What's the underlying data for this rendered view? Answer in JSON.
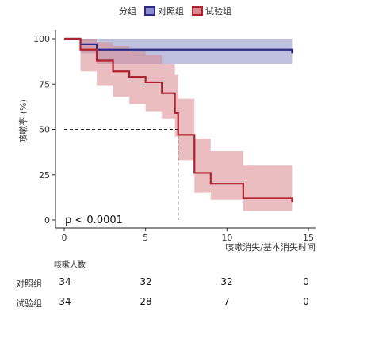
{
  "legend": {
    "title": "分组",
    "items": [
      {
        "name": "对照组",
        "color": "#2b2a84"
      },
      {
        "name": "试验组",
        "color": "#b0212d"
      }
    ]
  },
  "chart_data": {
    "type": "line",
    "ylabel": "咳嗽率 (%)",
    "xlabel": "咳嗽消失/基本消失时间",
    "xlim": [
      0,
      15
    ],
    "ylim": [
      0,
      100
    ],
    "xticks": [
      "0",
      "5",
      "10",
      "15"
    ],
    "yticks": [
      "0",
      "25",
      "50",
      "75",
      "100"
    ],
    "annotation": "p < 0.0001",
    "median_line": {
      "x": 7,
      "y": 50
    },
    "series": [
      {
        "name": "对照组",
        "color": "#2b2a84",
        "band_color": "#8c8cc8",
        "steps": [
          [
            0,
            100
          ],
          [
            1,
            100
          ],
          [
            1,
            97
          ],
          [
            2,
            97
          ],
          [
            2,
            94
          ],
          [
            14,
            94
          ],
          [
            14,
            92
          ]
        ],
        "band": [
          [
            0,
            100,
            100
          ],
          [
            1,
            100,
            92
          ],
          [
            2,
            100,
            86
          ],
          [
            14,
            100,
            86
          ]
        ]
      },
      {
        "name": "试验组",
        "color": "#b0212d",
        "band_color": "#d9868e",
        "steps": [
          [
            0,
            100
          ],
          [
            1,
            100
          ],
          [
            1,
            94
          ],
          [
            2,
            94
          ],
          [
            2,
            88
          ],
          [
            3,
            88
          ],
          [
            3,
            82
          ],
          [
            4,
            82
          ],
          [
            4,
            79
          ],
          [
            5,
            79
          ],
          [
            5,
            76
          ],
          [
            6,
            76
          ],
          [
            6,
            70
          ],
          [
            6.8,
            70
          ],
          [
            6.8,
            59
          ],
          [
            7,
            59
          ],
          [
            7,
            47
          ],
          [
            8,
            47
          ],
          [
            8,
            26
          ],
          [
            9,
            26
          ],
          [
            9,
            20
          ],
          [
            11,
            20
          ],
          [
            11,
            12
          ],
          [
            14,
            12
          ],
          [
            14,
            10
          ]
        ],
        "band": [
          [
            0,
            100,
            100
          ],
          [
            1,
            100,
            82
          ],
          [
            2,
            98,
            74
          ],
          [
            3,
            96,
            68
          ],
          [
            4,
            93,
            64
          ],
          [
            5,
            91,
            60
          ],
          [
            6,
            86,
            56
          ],
          [
            6.8,
            80,
            46
          ],
          [
            7,
            67,
            33
          ],
          [
            8,
            45,
            15
          ],
          [
            9,
            38,
            11
          ],
          [
            11,
            30,
            5
          ],
          [
            14,
            30,
            5
          ]
        ]
      }
    ]
  },
  "risk_table": {
    "title": "咳嗽人数",
    "rows": [
      {
        "label": "对照组",
        "values": [
          "34",
          "32",
          "32",
          "0"
        ]
      },
      {
        "label": "试验组",
        "values": [
          "34",
          "28",
          "7",
          "0"
        ]
      }
    ]
  }
}
